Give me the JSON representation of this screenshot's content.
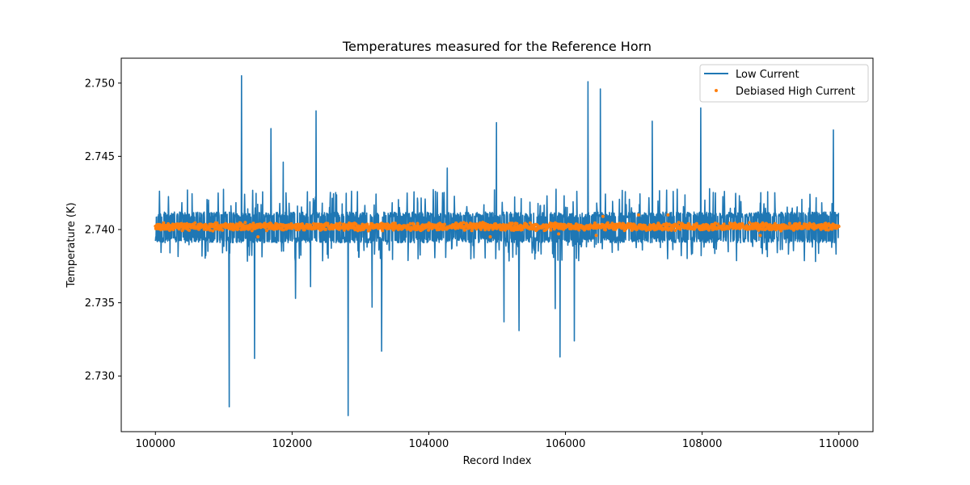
{
  "chart_data": {
    "type": "line",
    "title": "Temperatures measured for the Reference Horn",
    "xlabel": "Record Index",
    "ylabel": "Temperature (K)",
    "xlim": [
      99500,
      110500
    ],
    "ylim": [
      2.7262,
      2.7517
    ],
    "xticks": [
      100000,
      102000,
      104000,
      106000,
      108000,
      110000
    ],
    "xtick_labels": [
      "100000",
      "102000",
      "104000",
      "106000",
      "108000",
      "110000"
    ],
    "yticks": [
      2.73,
      2.735,
      2.74,
      2.745,
      2.75
    ],
    "ytick_labels": [
      "2.730",
      "2.735",
      "2.740",
      "2.745",
      "2.750"
    ],
    "grid": false,
    "legend_position": "top-right",
    "series": [
      {
        "name": "Low Current",
        "kind": "line",
        "color": "#1f77b4",
        "x_range": [
          100000,
          110000
        ],
        "baseline": 2.7402,
        "band": [
          2.7391,
          2.7412
        ],
        "spikes": [
          {
            "x": 101080,
            "y": 2.7279
          },
          {
            "x": 101260,
            "y": 2.7505
          },
          {
            "x": 101450,
            "y": 2.7312
          },
          {
            "x": 101690,
            "y": 2.7469
          },
          {
            "x": 101870,
            "y": 2.7446
          },
          {
            "x": 102050,
            "y": 2.7353
          },
          {
            "x": 102270,
            "y": 2.7361
          },
          {
            "x": 102350,
            "y": 2.7481
          },
          {
            "x": 102820,
            "y": 2.7273
          },
          {
            "x": 103170,
            "y": 2.7347
          },
          {
            "x": 103310,
            "y": 2.7317
          },
          {
            "x": 104270,
            "y": 2.7442
          },
          {
            "x": 104990,
            "y": 2.7473
          },
          {
            "x": 105100,
            "y": 2.7337
          },
          {
            "x": 105320,
            "y": 2.7331
          },
          {
            "x": 105850,
            "y": 2.7346
          },
          {
            "x": 105920,
            "y": 2.7313
          },
          {
            "x": 106130,
            "y": 2.7324
          },
          {
            "x": 106330,
            "y": 2.7501
          },
          {
            "x": 106510,
            "y": 2.7496
          },
          {
            "x": 107270,
            "y": 2.7474
          },
          {
            "x": 107980,
            "y": 2.7483
          },
          {
            "x": 109920,
            "y": 2.7468
          }
        ]
      },
      {
        "name": "Debiased High Current",
        "kind": "scatter",
        "color": "#ff7f0e",
        "x_range": [
          100000,
          110000
        ],
        "baseline": 2.7402,
        "spread": 0.0003,
        "outliers": [
          {
            "x": 101500,
            "y": 2.7395
          },
          {
            "x": 104900,
            "y": 2.7395
          },
          {
            "x": 105900,
            "y": 2.7397
          },
          {
            "x": 106450,
            "y": 2.7396
          },
          {
            "x": 106550,
            "y": 2.7409
          },
          {
            "x": 107070,
            "y": 2.741
          },
          {
            "x": 107500,
            "y": 2.741
          },
          {
            "x": 108850,
            "y": 2.7396
          }
        ]
      }
    ]
  }
}
